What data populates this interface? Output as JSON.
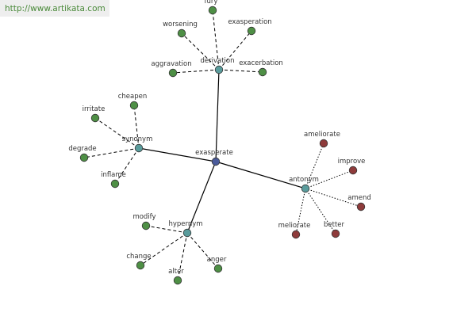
{
  "header": {
    "url": "http://www.artikata.com"
  },
  "nodes": [
    {
      "label": "exasperate"
    },
    {
      "label": "derivation"
    },
    {
      "label": "synonym"
    },
    {
      "label": "antonym"
    },
    {
      "label": "hypernym"
    },
    {
      "label": "fury"
    },
    {
      "label": "worsening"
    },
    {
      "label": "exasperation"
    },
    {
      "label": "aggravation"
    },
    {
      "label": "exacerbation"
    },
    {
      "label": "irritate"
    },
    {
      "label": "cheapen"
    },
    {
      "label": "degrade"
    },
    {
      "label": "inflame"
    },
    {
      "label": "ameliorate"
    },
    {
      "label": "improve"
    },
    {
      "label": "amend"
    },
    {
      "label": "meliorate"
    },
    {
      "label": "better"
    },
    {
      "label": "modify"
    },
    {
      "label": "change"
    },
    {
      "label": "alter"
    },
    {
      "label": "anger"
    }
  ]
}
